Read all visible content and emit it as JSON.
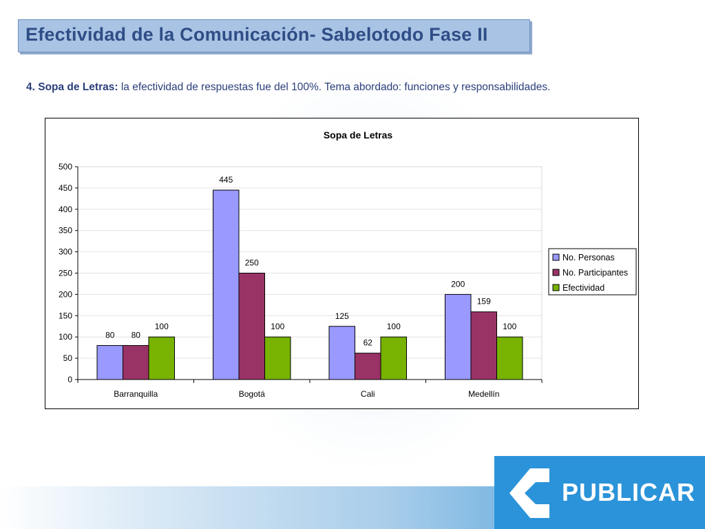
{
  "header": {
    "title": "Efectividad de la Comunicación- Sabelotodo Fase II"
  },
  "subtitle": {
    "lead": "4. Sopa de Letras:",
    "text": " la efectividad de respuestas fue del 100%. Tema abordado: funciones y responsabilidades."
  },
  "chart_data": {
    "type": "bar",
    "title": "Sopa de Letras",
    "categories": [
      "Barranquilla",
      "Bogotá",
      "Cali",
      "Medellín"
    ],
    "series": [
      {
        "name": "No. Personas",
        "values": [
          80,
          445,
          125,
          200
        ],
        "color": "#9999ff"
      },
      {
        "name": "No. Participantes",
        "values": [
          80,
          250,
          62,
          159
        ],
        "color": "#993366"
      },
      {
        "name": "Efectividad",
        "values": [
          100,
          100,
          100,
          100
        ],
        "color": "#77b300"
      }
    ],
    "ylim": [
      0,
      500
    ],
    "yticks": [
      0,
      50,
      100,
      150,
      200,
      250,
      300,
      350,
      400,
      450,
      500
    ],
    "grid": true,
    "legend": "right",
    "data_labels": true
  },
  "logo": {
    "text": "PUBLICAR",
    "primary_color": "#2b93d9"
  }
}
